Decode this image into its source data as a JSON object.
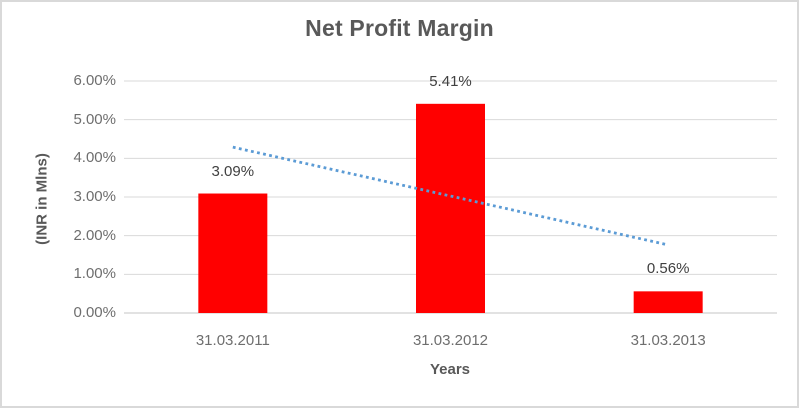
{
  "chart_data": {
    "type": "bar",
    "title": "Net Profit Margin",
    "xlabel": "Years",
    "ylabel": "(INR in Mlns)",
    "categories": [
      "31.03.2011",
      "31.03.2012",
      "31.03.2013"
    ],
    "values": [
      3.09,
      5.41,
      0.56
    ],
    "value_labels": [
      "3.09%",
      "5.41%",
      "0.56%"
    ],
    "ylim": [
      0,
      6
    ],
    "ytick_step": 1,
    "ytick_labels": [
      "0.00%",
      "1.00%",
      "2.00%",
      "3.00%",
      "4.00%",
      "5.00%",
      "6.00%"
    ],
    "grid": true,
    "legend": "none",
    "bar_color": "#FF0000",
    "trendline": {
      "type": "linear",
      "style": "dotted",
      "color": "#5B9BD5",
      "y_start": 4.29,
      "y_end": 1.76
    },
    "colors": {
      "title": "#595959",
      "axis_title": "#595959",
      "tick_label": "#6E6E6E",
      "data_label": "#404040",
      "gridline": "#D9D9D9",
      "baseline": "#C6C6C6",
      "frame_border": "#D9D9D9",
      "background": "#FFFFFF"
    }
  }
}
